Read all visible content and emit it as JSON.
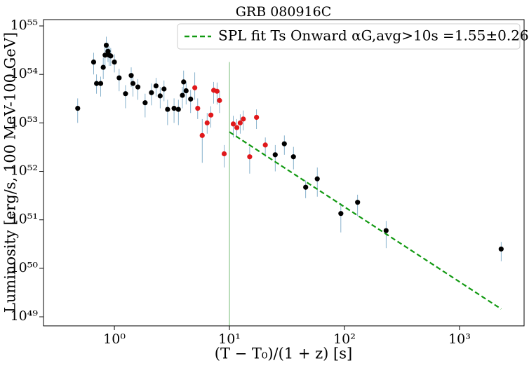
{
  "chart_data": {
    "type": "scatter",
    "title": "GRB 080916C",
    "xlabel": "(T − T₀)/(1 + z) [s]",
    "ylabel": "Luminosity [erg/s, 100 MeV-100 GeV]",
    "xscale": "log",
    "yscale": "log",
    "xlim": [
      0.242,
      3640
    ],
    "ylim": [
      6.5e+48,
      1.35e+55
    ],
    "xticks": [
      {
        "value": 1,
        "label": "10⁰"
      },
      {
        "value": 10,
        "label": "10¹"
      },
      {
        "value": 100,
        "label": "10²"
      },
      {
        "value": 1000,
        "label": "10³"
      }
    ],
    "yticks": [
      {
        "value": 1e+49,
        "label": "10⁴⁹"
      },
      {
        "value": 1e+50,
        "label": "10⁵⁰"
      },
      {
        "value": 1e+51,
        "label": "10⁵¹"
      },
      {
        "value": 1e+52,
        "label": "10⁵²"
      },
      {
        "value": 1e+53,
        "label": "10⁵³"
      },
      {
        "value": 1e+54,
        "label": "10⁵⁴"
      },
      {
        "value": 1e+55,
        "label": "10⁵⁵"
      }
    ],
    "legend_position": "upper right",
    "errorbar_color": "#6a9fc0",
    "vline": {
      "x": 10,
      "ymax": 1.8e+54,
      "color": "#55aa55"
    },
    "series": [
      {
        "type": "scatter",
        "color": "#000000",
        "x": [
          0.48,
          0.66,
          0.7,
          0.76,
          0.8,
          0.83,
          0.85,
          0.88,
          0.9,
          0.93,
          1.0,
          1.1,
          1.25,
          1.4,
          1.45,
          1.6,
          1.85,
          2.1,
          2.3,
          2.5,
          2.7,
          2.9,
          3.3,
          3.6,
          3.9,
          4.0,
          4.2,
          4.6,
          25,
          30,
          36,
          46,
          58,
          93,
          130,
          230,
          2300
        ],
        "values": [
          2e+53,
          1.8e+54,
          6.5e+53,
          6.5e+53,
          1.4e+54,
          2.5e+54,
          4e+54,
          3e+54,
          2.5e+54,
          2.4e+54,
          1.8e+54,
          8.5e+53,
          4e+53,
          9.5e+53,
          6.5e+53,
          5.5e+53,
          2.6e+53,
          4.2e+53,
          5.8e+53,
          3.6e+53,
          5e+53,
          1.9e+53,
          2e+53,
          1.9e+53,
          3.7e+53,
          7e+53,
          4.6e+53,
          3.1e+53,
          2.2e+52,
          3.7e+52,
          2e+52,
          4.7e+51,
          7e+51,
          1.35e+51,
          2.3e+51,
          6e+50,
          2.5e+50
        ],
        "y_low": [
          1e+53,
          1e+54,
          4e+53,
          3.5e+53,
          8e+53,
          1.5e+54,
          2.5e+54,
          1.8e+54,
          1.5e+54,
          1.5e+54,
          1.1e+54,
          4.5e+53,
          2e+53,
          5.5e+53,
          3.5e+53,
          3e+53,
          1.3e+53,
          2.3e+53,
          3.5e+53,
          2e+53,
          2.8e+53,
          9e+52,
          1e+53,
          9e+52,
          2e+53,
          3.5e+53,
          2.4e+53,
          1.6e+53,
          1e+52,
          2.2e+52,
          1.1e+52,
          2.8e+51,
          3e+51,
          5.5e+50,
          1.2e+51,
          2.6e+50,
          1.4e+50
        ],
        "y_high": [
          3.2e+53,
          2.8e+54,
          1e+54,
          9e+53,
          2.2e+54,
          4e+54,
          6e+54,
          4.5e+54,
          3.8e+54,
          3.5e+54,
          2.6e+54,
          1.3e+54,
          6e+53,
          1.4e+54,
          1e+54,
          8e+53,
          4e+53,
          6.5e+53,
          8.5e+53,
          5.5e+53,
          7.5e+53,
          3e+53,
          3.2e+53,
          3e+53,
          5.5e+53,
          1.2e+54,
          7e+53,
          4.8e+53,
          3.5e+52,
          5.5e+52,
          3.2e+52,
          6.5e+51,
          1.2e+52,
          2.2e+51,
          3.3e+51,
          9.5e+50,
          3.5e+50
        ]
      },
      {
        "type": "scatter",
        "color": "#e0181b",
        "x": [
          5.0,
          5.3,
          5.8,
          6.4,
          6.9,
          7.3,
          7.8,
          8.2,
          9.0,
          10.8,
          11.6,
          12.4,
          13.2,
          15,
          17.2,
          20.5
        ],
        "values": [
          5.3e+53,
          2e+53,
          5.5e+52,
          1e+53,
          1.45e+53,
          4.7e+53,
          4.5e+53,
          2.9e+53,
          2.3e+52,
          9.5e+52,
          8e+52,
          1e+53,
          1.2e+53,
          2e+52,
          1.3e+53,
          3.5e+52
        ],
        "y_low": [
          3e+53,
          1.2e+53,
          1.5e+52,
          6e+52,
          8e+52,
          2.5e+53,
          2.4e+53,
          1.6e+53,
          1.2e+52,
          5e+52,
          5e+52,
          6e+52,
          7e+52,
          9e+51,
          7.5e+52,
          2e+52
        ],
        "y_high": [
          1.1e+54,
          3.2e+53,
          1.2e+53,
          1.6e+53,
          2.2e+53,
          7e+53,
          6.8e+53,
          4.5e+53,
          3.5e+52,
          1.4e+53,
          1.2e+53,
          1.5e+53,
          1.8e+53,
          3.2e+52,
          1.9e+53,
          5e+52
        ]
      },
      {
        "type": "line",
        "name": "SPL fit Ts Onward αG,avg>10s =1.55±0.26",
        "color": "#119911",
        "dash": true,
        "x": [
          10,
          2300
        ],
        "values": [
          6.5e+52,
          1.45e+49
        ]
      }
    ]
  }
}
